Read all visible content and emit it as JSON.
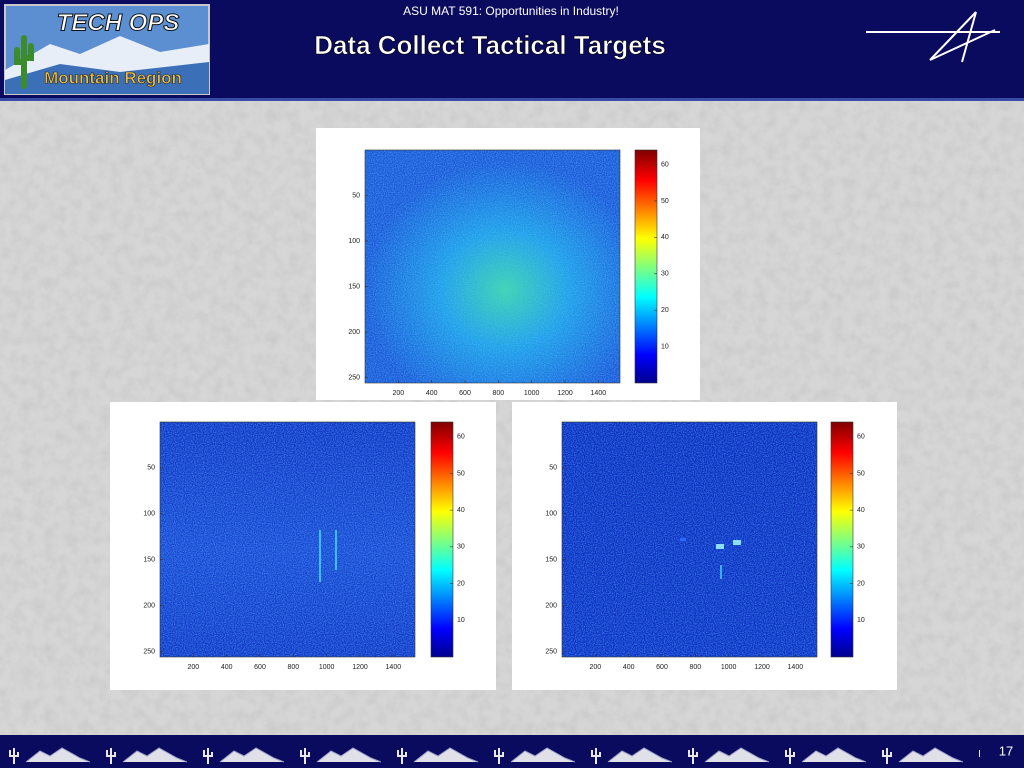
{
  "header": {
    "course": "ASU MAT 591: Opportunities in Industry!",
    "title": "Data Collect Tactical Targets"
  },
  "logo": {
    "top": "TECH OPS",
    "bottom": "Mountain Region"
  },
  "chart_data": [
    {
      "type": "heatmap",
      "xlim": [
        0,
        1530
      ],
      "ylim": [
        0,
        256
      ],
      "clim": [
        0,
        64
      ],
      "xticks": [
        200,
        400,
        600,
        800,
        1000,
        1200,
        1400
      ],
      "yticks": [
        50,
        100,
        150,
        200,
        250
      ],
      "cticks": [
        10,
        20,
        30,
        40,
        50,
        60
      ]
    },
    {
      "type": "heatmap",
      "xlim": [
        0,
        1530
      ],
      "ylim": [
        0,
        256
      ],
      "clim": [
        0,
        64
      ],
      "xticks": [
        200,
        400,
        600,
        800,
        1000,
        1200,
        1400
      ],
      "yticks": [
        50,
        100,
        150,
        200,
        250
      ],
      "cticks": [
        10,
        20,
        30,
        40,
        50,
        60
      ]
    },
    {
      "type": "heatmap",
      "xlim": [
        0,
        1530
      ],
      "ylim": [
        0,
        256
      ],
      "clim": [
        0,
        64
      ],
      "xticks": [
        200,
        400,
        600,
        800,
        1000,
        1200,
        1400
      ],
      "yticks": [
        50,
        100,
        150,
        200,
        250
      ],
      "cticks": [
        10,
        20,
        30,
        40,
        50,
        60
      ]
    }
  ],
  "footer": {
    "page": "17"
  }
}
